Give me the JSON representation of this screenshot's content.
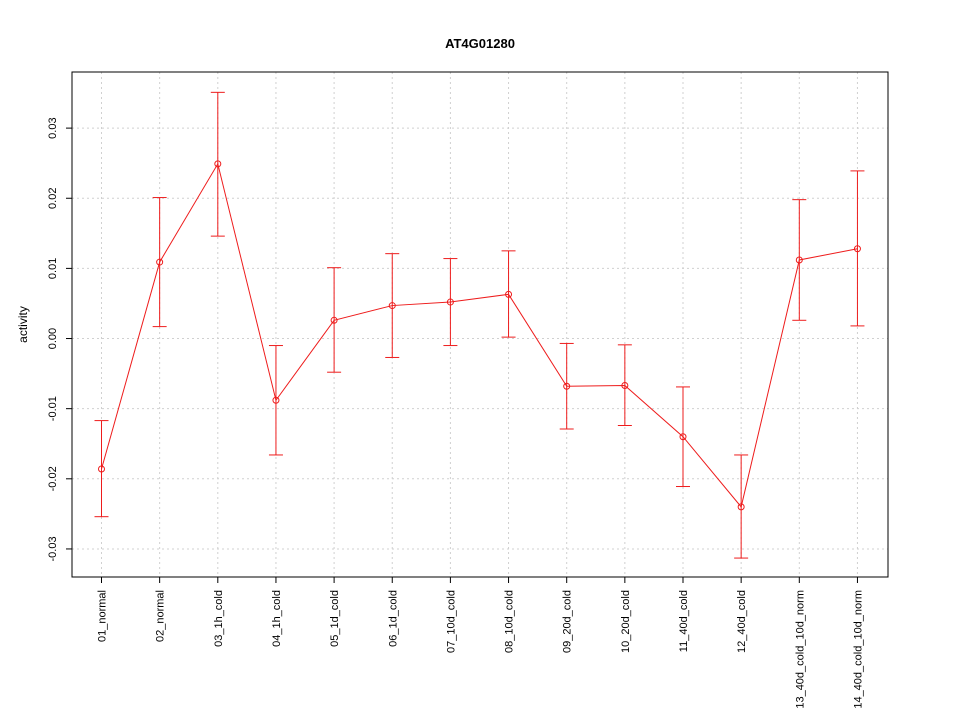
{
  "chart_data": {
    "type": "line",
    "title": "AT4G01280",
    "xlabel": "",
    "ylabel": "activity",
    "categories": [
      "01_normal",
      "02_normal",
      "03_1h_cold",
      "04_1h_cold",
      "05_1d_cold",
      "06_1d_cold",
      "07_10d_cold",
      "08_10d_cold",
      "09_20d_cold",
      "10_20d_cold",
      "11_40d_cold",
      "12_40d_cold",
      "13_40d_cold_10d_norm",
      "14_40d_cold_10d_norm"
    ],
    "series": [
      {
        "values": [
          -0.0186,
          0.0109,
          0.0249,
          -0.0088,
          0.0026,
          0.0047,
          0.0052,
          0.0063,
          -0.0068,
          -0.0067,
          -0.014,
          -0.024,
          0.0112,
          0.0128
        ],
        "upper": [
          -0.0117,
          0.0201,
          0.0351,
          -0.001,
          0.0101,
          0.0121,
          0.0114,
          0.0125,
          -0.0007,
          -0.0009,
          -0.0069,
          -0.0166,
          0.0198,
          0.0239
        ],
        "lower": [
          -0.0254,
          0.0017,
          0.0146,
          -0.0166,
          -0.0048,
          -0.0027,
          -0.001,
          0.0002,
          -0.0129,
          -0.0124,
          -0.0211,
          -0.0313,
          0.0026,
          0.0018
        ]
      }
    ],
    "yticks": [
      -0.03,
      -0.02,
      -0.01,
      0.0,
      0.01,
      0.02,
      0.03
    ],
    "ytick_labels": [
      "-0.03",
      "-0.02",
      "-0.01",
      "0.00",
      "0.01",
      "0.02",
      "0.03"
    ],
    "ylim": [
      -0.034,
      0.038
    ],
    "grid": true,
    "colors": {
      "series": "#ee1c1c",
      "grid": "#d0d0d0",
      "frame": "#000000"
    }
  }
}
